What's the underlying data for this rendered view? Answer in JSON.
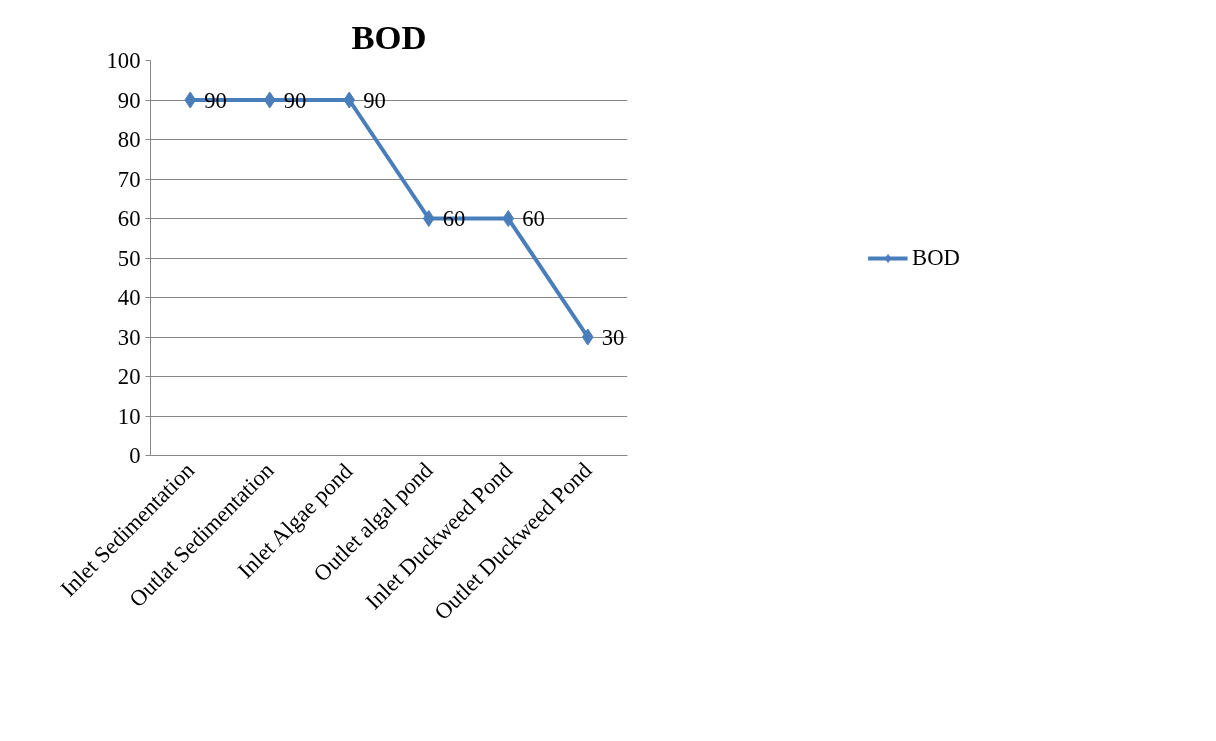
{
  "chart_data": {
    "type": "line",
    "title": "BOD",
    "categories": [
      "Inlet Sedimentation",
      "Outlat Sedimentation",
      "Inlet Algae pond",
      "Outlet algal pond",
      "Inlet Duckweed Pond",
      "Outlet Duckweed Pond"
    ],
    "series": [
      {
        "name": "BOD",
        "color": "#4a7ebb",
        "values": [
          90,
          90,
          90,
          60,
          60,
          30
        ]
      }
    ],
    "ylim": [
      0,
      100
    ],
    "yticks": [
      0,
      10,
      20,
      30,
      40,
      50,
      60,
      70,
      80,
      90,
      100
    ],
    "grid": "y",
    "legend": "right",
    "marker": "diamond",
    "line_style": "solid",
    "data_labels": true
  }
}
